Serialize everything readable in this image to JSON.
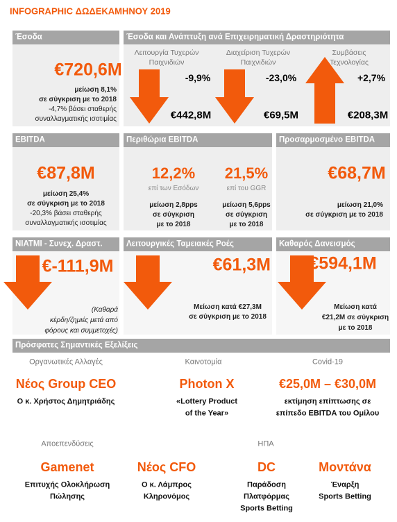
{
  "title": "INFOGRAPHIC ΔΩΔΕΚΑΜΗΝΟΥ 2019",
  "revenue": {
    "header": "Έσοδα",
    "value": "€720,6M",
    "lines": [
      "μείωση 8,1%",
      "σε σύγκριση με το 2018",
      "-4,7% βάσει σταθερής",
      "συναλλαγματικής ισοτιμίας"
    ]
  },
  "segments": {
    "header": "Έσοδα και Ανάπτυξη ανά Επιχειρηματική Δραστηριότητα",
    "items": [
      {
        "label": [
          "Λειτουργία Τυχερών",
          "Παιχνιδιών"
        ],
        "change": "-9,9%",
        "value": "€442,8M"
      },
      {
        "label": [
          "Διαχείριση Τυχερών",
          "Παιχνιδιών"
        ],
        "change": "-23,0%",
        "value": "€69,5M"
      },
      {
        "label": [
          "Συμβάσεις",
          "Τεχνολογίας"
        ],
        "change": "+2,7%",
        "value": "€208,3M"
      }
    ]
  },
  "ebitda": {
    "header": "EBITDA",
    "value": "€87,8M",
    "lines": [
      "μείωση 25,4%",
      "σε σύγκριση με το 2018",
      "-20,3% βάσει σταθερής",
      "συναλλαγματικής ισοτιμίας"
    ]
  },
  "margins": {
    "header": "Περιθώρια EBITDA",
    "items": [
      {
        "value": "12,2%",
        "basis": "επί των Εσόδων",
        "lines": [
          "μείωση 2,8pps",
          "σε σύγκριση",
          "με το 2018"
        ]
      },
      {
        "value": "21,5%",
        "basis": "επί του GGR",
        "lines": [
          "μείωση 5,6pps",
          "σε σύγκριση",
          "με το 2018"
        ]
      }
    ]
  },
  "adjusted_ebitda": {
    "header": "Προσαρμοσμένο EBITDA",
    "value": "€68,7M",
    "lines": [
      "μείωση 21,0%",
      "σε σύγκριση με το 2018"
    ]
  },
  "niatmi": {
    "header": "ΝΙΑΤΜΙ - Συνεχ. Δραστ.",
    "value": "€-111,9M",
    "lines": [
      "(Καθαρά",
      "κέρδη/ζημιές μετά από",
      "φόρους και συμμετοχές)"
    ]
  },
  "cash_flow": {
    "header": "Λειτουργικές Ταμειακές Ροές",
    "value": "€61,3M",
    "lines": [
      "Μείωση κατά €27,3M",
      "σε σύγκριση με το 2018"
    ]
  },
  "net_debt": {
    "header": "Καθαρός Δανεισμός",
    "value": "€594,1M",
    "lines": [
      "Μείωση κατά",
      "€21,2M σε σύγκριση",
      "με το 2018"
    ]
  },
  "developments": {
    "header": "Πρόσφατες Σημαντικές Εξελίξεις",
    "labels": [
      "Οργανωτικές Αλλαγές",
      "Καινοτομία",
      "Covid-19",
      "Αποεπενδύσεις",
      "ΗΠΑ"
    ],
    "items": [
      {
        "title": "Νέος Group CEO",
        "lines": [
          "Ο κ. Χρήστος Δημητριάδης"
        ]
      },
      {
        "title": "Photon X",
        "lines": [
          "«Lottery Product",
          "of the Year»"
        ]
      },
      {
        "title": "€25,0M – €30,0M",
        "lines": [
          "εκτίμηση επίπτωσης σε",
          "επίπεδο EBITDA του Ομίλου"
        ]
      },
      {
        "title": "Gamenet",
        "lines": [
          "Επιτυχής Ολοκλήρωση",
          "Πώλησης"
        ]
      },
      {
        "title": "Νέος CFO",
        "lines": [
          "Ο κ. Λάμπρος",
          "Κληρονόμος"
        ]
      },
      {
        "title": "DC",
        "lines": [
          "Παράδοση",
          "Πλατφόρμας",
          "Sports Betting"
        ]
      },
      {
        "title": "Μοντάνα",
        "lines": [
          "Έναρξη",
          "Sports Betting"
        ]
      }
    ]
  }
}
